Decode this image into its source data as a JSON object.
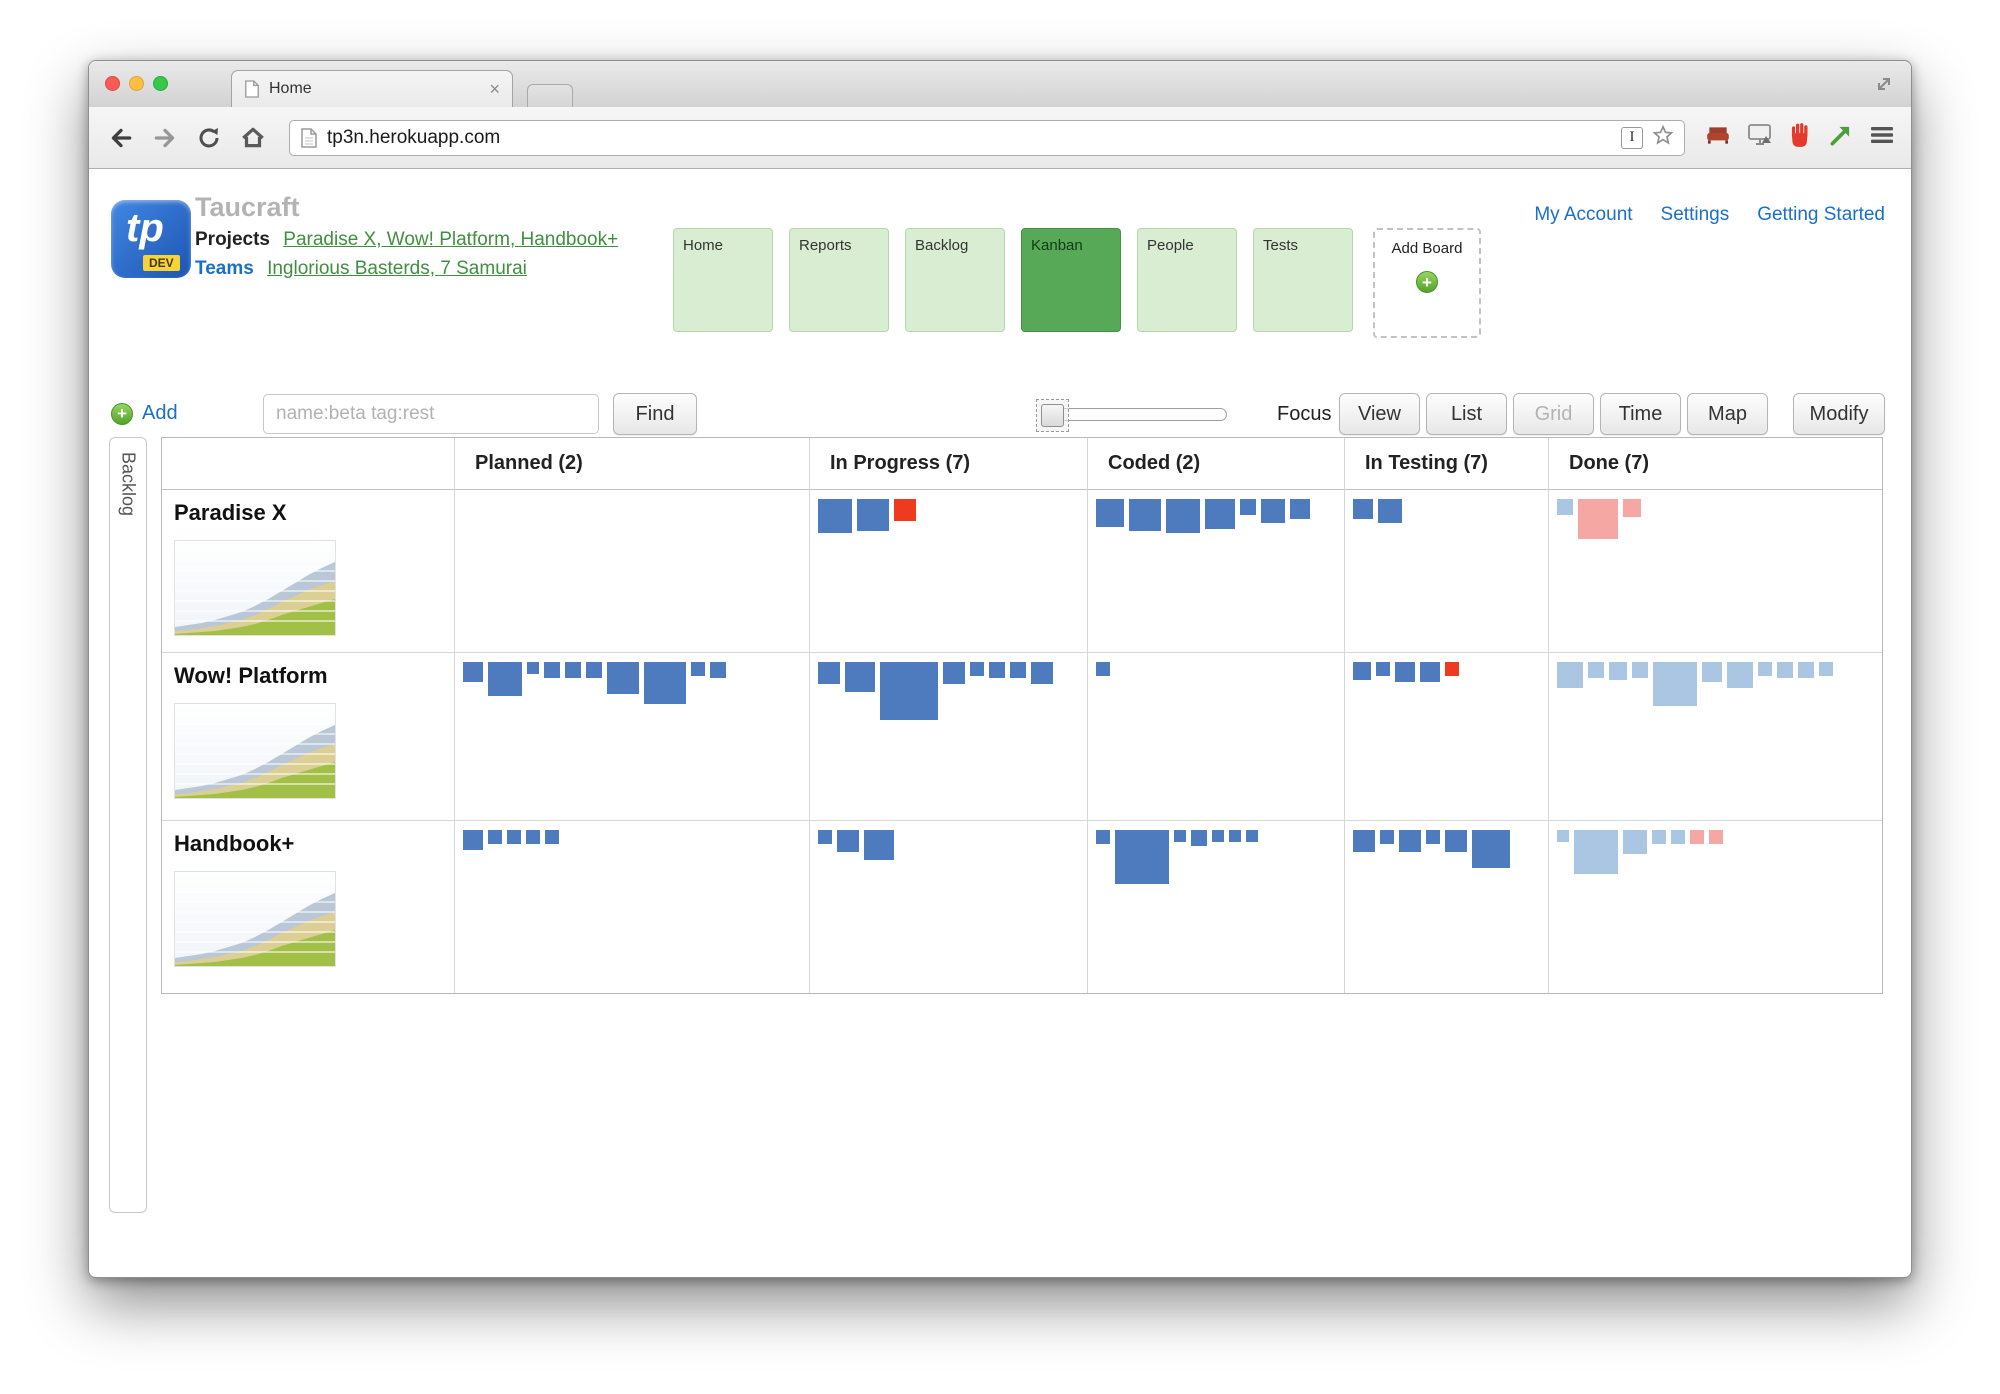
{
  "browser": {
    "tab_title": "Home",
    "url": "tp3n.herokuapp.com",
    "icons": [
      "back-icon",
      "forward-icon",
      "reload-icon",
      "home-icon",
      "page-icon",
      "text-cursor-icon",
      "star-icon",
      "couch-extension-icon",
      "display-extension-icon",
      "stop-hand-extension-icon",
      "green-arrow-extension-icon",
      "menu-icon",
      "resize-icon"
    ]
  },
  "header": {
    "app_title": "Taucraft",
    "logo_text": "tp",
    "logo_badge": "DEV",
    "projects_label": "Projects",
    "projects_links": "Paradise X, Wow! Platform, Handbook+",
    "teams_label": "Teams",
    "teams_links": "Inglorious Basterds, 7 Samurai",
    "account_links": [
      {
        "label": "My Account"
      },
      {
        "label": "Settings"
      },
      {
        "label": "Getting Started"
      }
    ]
  },
  "boards": {
    "add_label": "Add Board",
    "items": [
      {
        "label": "Home",
        "selected": false
      },
      {
        "label": "Reports",
        "selected": false
      },
      {
        "label": "Backlog",
        "selected": false
      },
      {
        "label": "Kanban",
        "selected": true
      },
      {
        "label": "People",
        "selected": false
      },
      {
        "label": "Tests",
        "selected": false
      }
    ]
  },
  "toolbar": {
    "add_label": "Add",
    "search_placeholder": "name:beta tag:rest",
    "find_label": "Find",
    "slider_value_pct": 0,
    "focus_label": "Focus",
    "view_buttons": [
      {
        "label": "View",
        "disabled": false
      },
      {
        "label": "List",
        "disabled": false
      },
      {
        "label": "Grid",
        "disabled": true
      },
      {
        "label": "Time",
        "disabled": false
      },
      {
        "label": "Map",
        "disabled": false
      }
    ],
    "modify_label": "Modify"
  },
  "kanban": {
    "backlog_tab": "Backlog",
    "columns": [
      "Planned (2)",
      "In Progress (7)",
      "Coded (2)",
      "In Testing (7)",
      "Done (7)"
    ],
    "square_colors": {
      "blue": "#4d7bbd",
      "light": "#abc6e2",
      "pink": "#f4a7a3",
      "red": "#ee3a1f"
    },
    "rows": [
      {
        "name": "Paradise X",
        "cells": [
          [],
          [
            {
              "s": 34,
              "c": "blue"
            },
            {
              "s": 32,
              "c": "blue"
            },
            {
              "s": 22,
              "c": "red"
            }
          ],
          [
            {
              "s": 28,
              "c": "blue"
            },
            {
              "s": 32,
              "c": "blue"
            },
            {
              "s": 34,
              "c": "blue"
            },
            {
              "s": 30,
              "c": "blue"
            },
            {
              "s": 16,
              "c": "blue"
            },
            {
              "s": 24,
              "c": "blue"
            },
            {
              "s": 20,
              "c": "blue"
            }
          ],
          [
            {
              "s": 20,
              "c": "blue"
            },
            {
              "s": 24,
              "c": "blue"
            }
          ],
          [
            {
              "s": 16,
              "c": "light"
            },
            {
              "s": 40,
              "c": "pink"
            },
            {
              "s": 18,
              "c": "pink"
            }
          ]
        ]
      },
      {
        "name": "Wow! Platform",
        "cells": [
          [
            {
              "s": 20,
              "c": "blue"
            },
            {
              "s": 34,
              "c": "blue"
            },
            {
              "s": 12,
              "c": "blue"
            },
            {
              "s": 16,
              "c": "blue"
            },
            {
              "s": 16,
              "c": "blue"
            },
            {
              "s": 16,
              "c": "blue"
            },
            {
              "s": 32,
              "c": "blue"
            },
            {
              "s": 42,
              "c": "blue"
            },
            {
              "s": 14,
              "c": "blue"
            },
            {
              "s": 16,
              "c": "blue"
            }
          ],
          [
            {
              "s": 22,
              "c": "blue"
            },
            {
              "s": 30,
              "c": "blue"
            },
            {
              "s": 58,
              "c": "blue"
            },
            {
              "s": 22,
              "c": "blue"
            },
            {
              "s": 14,
              "c": "blue"
            },
            {
              "s": 16,
              "c": "blue"
            },
            {
              "s": 16,
              "c": "blue"
            },
            {
              "s": 22,
              "c": "blue"
            }
          ],
          [
            {
              "s": 14,
              "c": "blue"
            }
          ],
          [
            {
              "s": 18,
              "c": "blue"
            },
            {
              "s": 14,
              "c": "blue"
            },
            {
              "s": 20,
              "c": "blue"
            },
            {
              "s": 20,
              "c": "blue"
            },
            {
              "s": 14,
              "c": "red"
            }
          ],
          [
            {
              "s": 26,
              "c": "light"
            },
            {
              "s": 16,
              "c": "light"
            },
            {
              "s": 18,
              "c": "light"
            },
            {
              "s": 16,
              "c": "light"
            },
            {
              "s": 44,
              "c": "light"
            },
            {
              "s": 20,
              "c": "light"
            },
            {
              "s": 26,
              "c": "light"
            },
            {
              "s": 14,
              "c": "light"
            },
            {
              "s": 16,
              "c": "light"
            },
            {
              "s": 16,
              "c": "light"
            },
            {
              "s": 14,
              "c": "light"
            }
          ]
        ]
      },
      {
        "name": "Handbook+",
        "cells": [
          [
            {
              "s": 20,
              "c": "blue"
            },
            {
              "s": 14,
              "c": "blue"
            },
            {
              "s": 14,
              "c": "blue"
            },
            {
              "s": 14,
              "c": "blue"
            },
            {
              "s": 14,
              "c": "blue"
            }
          ],
          [
            {
              "s": 14,
              "c": "blue"
            },
            {
              "s": 22,
              "c": "blue"
            },
            {
              "s": 30,
              "c": "blue"
            }
          ],
          [
            {
              "s": 14,
              "c": "blue"
            },
            {
              "s": 54,
              "c": "blue"
            },
            {
              "s": 12,
              "c": "blue"
            },
            {
              "s": 16,
              "c": "blue"
            },
            {
              "s": 12,
              "c": "blue"
            },
            {
              "s": 12,
              "c": "blue"
            },
            {
              "s": 12,
              "c": "blue"
            }
          ],
          [
            {
              "s": 22,
              "c": "blue"
            },
            {
              "s": 14,
              "c": "blue"
            },
            {
              "s": 22,
              "c": "blue"
            },
            {
              "s": 14,
              "c": "blue"
            },
            {
              "s": 22,
              "c": "blue"
            },
            {
              "s": 38,
              "c": "blue"
            }
          ],
          [
            {
              "s": 12,
              "c": "light"
            },
            {
              "s": 44,
              "c": "light"
            },
            {
              "s": 24,
              "c": "light"
            },
            {
              "s": 14,
              "c": "light"
            },
            {
              "s": 14,
              "c": "light"
            },
            {
              "s": 14,
              "c": "pink"
            },
            {
              "s": 14,
              "c": "pink"
            }
          ]
        ]
      }
    ],
    "sparkline": {
      "width": 160,
      "height": 94,
      "layers": [
        {
          "color": "#b9c7d6",
          "values": [
            86,
            84,
            82,
            79,
            75,
            71,
            65,
            58,
            50,
            42,
            34,
            27,
            21
          ]
        },
        {
          "color": "#dbcf93",
          "values": [
            90,
            89,
            87,
            85,
            82,
            79,
            74,
            68,
            61,
            55,
            49,
            44,
            40
          ]
        },
        {
          "color": "#a2c048",
          "values": [
            93,
            92,
            91,
            90,
            88,
            86,
            83,
            79,
            74,
            70,
            66,
            62,
            58
          ]
        }
      ]
    }
  },
  "colors": {
    "tile_green": "#d9edd3",
    "tile_green_border": "#b5d7ab",
    "tile_selected": "#57a957",
    "link_blue": "#1a70c8",
    "link_green": "#3f8f3f",
    "square_blue": "#4d7bbd",
    "square_light_blue": "#abc6e2",
    "square_pink": "#f4a7a3",
    "square_red": "#ee3a1f"
  }
}
